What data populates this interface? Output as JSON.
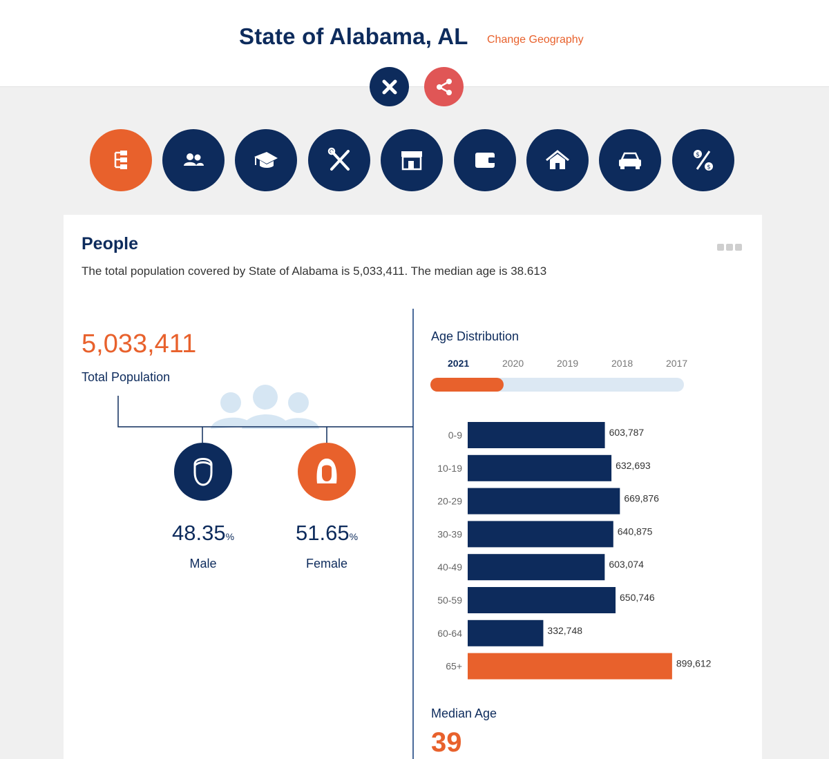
{
  "header": {
    "title": "State of Alabama, AL",
    "change_geography": "Change Geography"
  },
  "categories": [
    {
      "name": "people",
      "icon": "org-chart-icon",
      "active": true
    },
    {
      "name": "households",
      "icon": "group-icon",
      "active": false
    },
    {
      "name": "education",
      "icon": "graduation-cap-icon",
      "active": false
    },
    {
      "name": "employment",
      "icon": "tools-icon",
      "active": false
    },
    {
      "name": "business",
      "icon": "storefront-icon",
      "active": false
    },
    {
      "name": "income",
      "icon": "wallet-icon",
      "active": false
    },
    {
      "name": "housing",
      "icon": "house-icon",
      "active": false
    },
    {
      "name": "transportation",
      "icon": "car-icon",
      "active": false
    },
    {
      "name": "finance",
      "icon": "percent-coins-icon",
      "active": false
    }
  ],
  "section": {
    "title": "People",
    "summary": "The total population covered by State of Alabama is 5,033,411. The median age is 38.613"
  },
  "population": {
    "total": "5,033,411",
    "total_label": "Total Population",
    "male_pct": "48.35",
    "female_pct": "51.65",
    "pct_symbol": "%",
    "male_label": "Male",
    "female_label": "Female"
  },
  "age_distribution": {
    "title": "Age Distribution",
    "years": [
      "2021",
      "2020",
      "2019",
      "2018",
      "2017"
    ],
    "selected_year": "2021",
    "year_progress": 0.29
  },
  "colors": {
    "navy": "#0d2b5c",
    "orange": "#e8612c",
    "red": "#e05656"
  },
  "chart_data": {
    "type": "bar",
    "orientation": "horizontal",
    "categories": [
      "0-9",
      "10-19",
      "20-29",
      "30-39",
      "40-49",
      "50-59",
      "60-64",
      "65+"
    ],
    "values": [
      603787,
      632693,
      669876,
      640875,
      603074,
      650746,
      332748,
      899612
    ],
    "data_labels": [
      "603,787",
      "632,693",
      "669,876",
      "640,875",
      "603,074",
      "650,746",
      "332,748",
      "899,612"
    ],
    "highlight_category": "65+",
    "title": "Age Distribution"
  },
  "median_age": {
    "label": "Median Age",
    "value": "39"
  }
}
